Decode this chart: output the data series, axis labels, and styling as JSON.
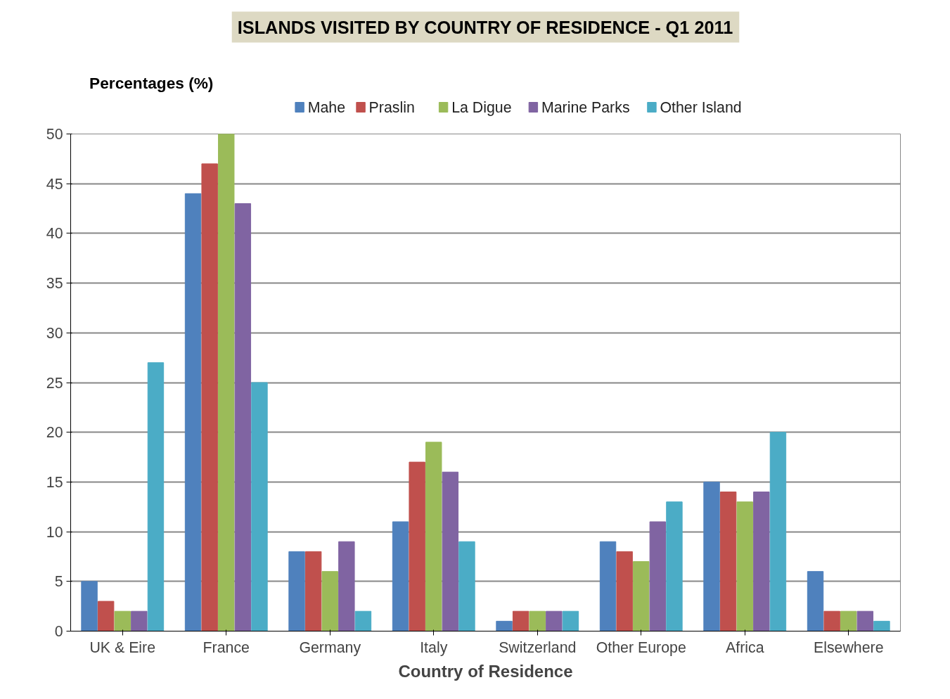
{
  "chart_data": {
    "type": "bar",
    "title": "ISLANDS VISITED BY COUNTRY OF RESIDENCE - Q1 2011",
    "xlabel": "Country of Residence",
    "ylabel": "Percentages (%)",
    "categories": [
      "UK & Eire",
      "France",
      "Germany",
      "Italy",
      "Switzerland",
      "Other Europe",
      "Africa",
      "Elsewhere"
    ],
    "series": [
      {
        "name": "Mahe",
        "color": "#4f81bd",
        "values": [
          5,
          44,
          8,
          11,
          1,
          9,
          15,
          6
        ]
      },
      {
        "name": "Praslin",
        "color": "#c0504d",
        "values": [
          3,
          47,
          8,
          17,
          2,
          8,
          14,
          2
        ]
      },
      {
        "name": "La Digue",
        "color": "#9bbb59",
        "values": [
          2,
          50,
          6,
          19,
          2,
          7,
          13,
          2
        ]
      },
      {
        "name": "Marine Parks",
        "color": "#8064a2",
        "values": [
          2,
          43,
          9,
          16,
          2,
          11,
          14,
          2
        ]
      },
      {
        "name": "Other Island",
        "color": "#4bacc6",
        "values": [
          27,
          25,
          2,
          9,
          2,
          13,
          20,
          1
        ]
      }
    ],
    "ylim": [
      0,
      50
    ],
    "yticks": [
      0,
      5,
      10,
      15,
      20,
      25,
      30,
      35,
      40,
      45,
      50
    ],
    "grid": "y",
    "legend": "top"
  }
}
